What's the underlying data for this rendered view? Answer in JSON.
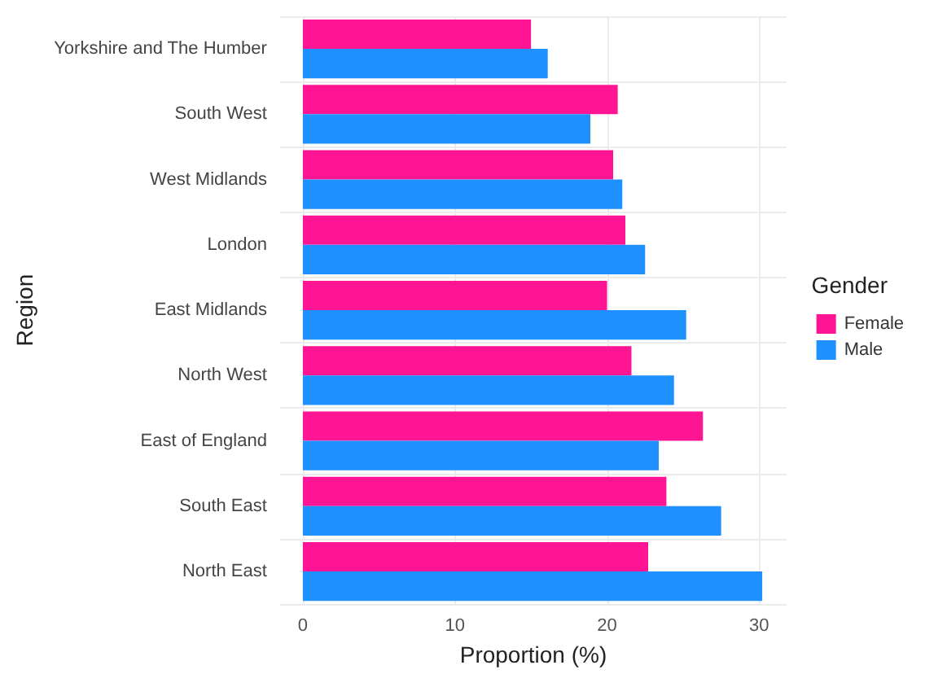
{
  "chart_data": {
    "type": "bar",
    "orientation": "horizontal",
    "xlabel": "Proportion (%)",
    "ylabel": "Region",
    "legend_title": "Gender",
    "categories": [
      "Yorkshire and The Humber",
      "South West",
      "West Midlands",
      "London",
      "East Midlands",
      "North West",
      "East of England",
      "South East",
      "North East"
    ],
    "series": [
      {
        "name": "Female",
        "color": "#ff1493",
        "values": [
          15.0,
          20.7,
          20.4,
          21.2,
          20.0,
          21.6,
          26.3,
          23.9,
          22.7
        ]
      },
      {
        "name": "Male",
        "color": "#1e90ff",
        "values": [
          16.1,
          18.9,
          21.0,
          22.5,
          25.2,
          24.4,
          23.4,
          27.5,
          30.2
        ]
      }
    ],
    "xlim": [
      -1.5,
      31.8
    ],
    "xticks": [
      0,
      10,
      20,
      30
    ],
    "grid": true,
    "legend": "right"
  }
}
